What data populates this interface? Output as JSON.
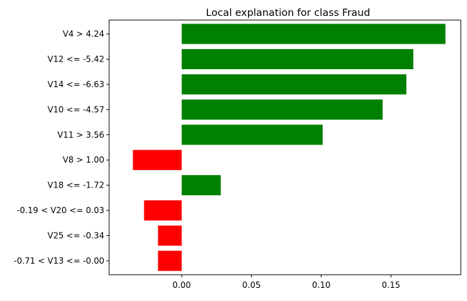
{
  "chart_data": {
    "type": "bar",
    "orientation": "horizontal",
    "title": "Local explanation for class Fraud",
    "xlabel": "",
    "ylabel": "",
    "xlim": [
      -0.052,
      0.2
    ],
    "xticks": [
      0.0,
      0.05,
      0.1,
      0.15
    ],
    "xtick_labels": [
      "0.00",
      "0.05",
      "0.10",
      "0.15"
    ],
    "grid": false,
    "legend": "none",
    "positive_color": "#008000",
    "negative_color": "#ff0000",
    "categories": [
      "V4 > 4.24",
      "V12 <= -5.42",
      "V14 <= -6.63",
      "V10 <= -4.57",
      "V11 > 3.56",
      "V8 > 1.00",
      "V18 <= -1.72",
      "-0.19 < V20 <= 0.03",
      "V25 <= -0.34",
      "-0.71 < V13 <= -0.00"
    ],
    "values": [
      0.189,
      0.166,
      0.161,
      0.144,
      0.101,
      -0.035,
      0.028,
      -0.027,
      -0.017,
      -0.017
    ]
  }
}
